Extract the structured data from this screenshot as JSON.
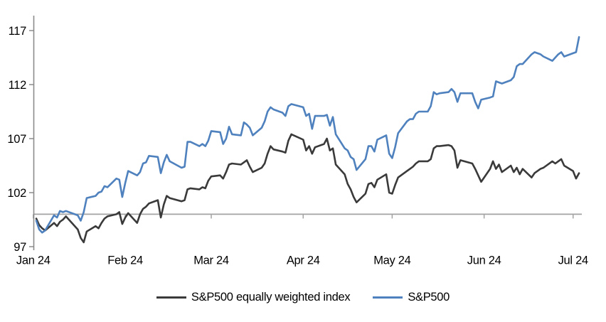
{
  "chart_data": {
    "type": "line",
    "title": "",
    "xlabel": "",
    "ylabel": "",
    "ylim": [
      97,
      117
    ],
    "y_ticks": [
      97,
      102,
      107,
      112,
      117
    ],
    "x_ticks": [
      {
        "label": "Jan 24",
        "date": "2024-01-01"
      },
      {
        "label": "Feb 24",
        "date": "2024-02-01"
      },
      {
        "label": "Mar 24",
        "date": "2024-03-01"
      },
      {
        "label": "Apr 24",
        "date": "2024-04-01"
      },
      {
        "label": "May 24",
        "date": "2024-05-01"
      },
      {
        "label": "Jun 24",
        "date": "2024-06-01"
      },
      {
        "label": "Jul 24",
        "date": "2024-07-01"
      }
    ],
    "baseline_value": 100,
    "grid": false,
    "legend_position": "bottom",
    "x": [
      "2024-01-02",
      "2024-01-03",
      "2024-01-04",
      "2024-01-05",
      "2024-01-08",
      "2024-01-09",
      "2024-01-10",
      "2024-01-11",
      "2024-01-12",
      "2024-01-16",
      "2024-01-17",
      "2024-01-18",
      "2024-01-19",
      "2024-01-22",
      "2024-01-23",
      "2024-01-24",
      "2024-01-25",
      "2024-01-26",
      "2024-01-29",
      "2024-01-30",
      "2024-01-31",
      "2024-02-01",
      "2024-02-02",
      "2024-02-05",
      "2024-02-06",
      "2024-02-07",
      "2024-02-08",
      "2024-02-09",
      "2024-02-12",
      "2024-02-13",
      "2024-02-14",
      "2024-02-15",
      "2024-02-16",
      "2024-02-20",
      "2024-02-21",
      "2024-02-22",
      "2024-02-23",
      "2024-02-26",
      "2024-02-27",
      "2024-02-28",
      "2024-02-29",
      "2024-03-01",
      "2024-03-04",
      "2024-03-05",
      "2024-03-06",
      "2024-03-07",
      "2024-03-08",
      "2024-03-11",
      "2024-03-12",
      "2024-03-13",
      "2024-03-14",
      "2024-03-15",
      "2024-03-18",
      "2024-03-19",
      "2024-03-20",
      "2024-03-21",
      "2024-03-22",
      "2024-03-25",
      "2024-03-26",
      "2024-03-27",
      "2024-03-28",
      "2024-04-01",
      "2024-04-02",
      "2024-04-03",
      "2024-04-04",
      "2024-04-05",
      "2024-04-08",
      "2024-04-09",
      "2024-04-10",
      "2024-04-11",
      "2024-04-12",
      "2024-04-15",
      "2024-04-16",
      "2024-04-17",
      "2024-04-18",
      "2024-04-19",
      "2024-04-22",
      "2024-04-23",
      "2024-04-24",
      "2024-04-25",
      "2024-04-26",
      "2024-04-29",
      "2024-04-30",
      "2024-05-01",
      "2024-05-02",
      "2024-05-03",
      "2024-05-06",
      "2024-05-07",
      "2024-05-08",
      "2024-05-09",
      "2024-05-10",
      "2024-05-13",
      "2024-05-14",
      "2024-05-15",
      "2024-05-16",
      "2024-05-17",
      "2024-05-20",
      "2024-05-21",
      "2024-05-22",
      "2024-05-23",
      "2024-05-24",
      "2024-05-28",
      "2024-05-29",
      "2024-05-30",
      "2024-05-31",
      "2024-06-03",
      "2024-06-04",
      "2024-06-05",
      "2024-06-06",
      "2024-06-07",
      "2024-06-10",
      "2024-06-11",
      "2024-06-12",
      "2024-06-13",
      "2024-06-14",
      "2024-06-17",
      "2024-06-18",
      "2024-06-20",
      "2024-06-21",
      "2024-06-24",
      "2024-06-25",
      "2024-06-26",
      "2024-06-27",
      "2024-06-28",
      "2024-07-01",
      "2024-07-02",
      "2024-07-03"
    ],
    "series": [
      {
        "name": "S&P500 equally weighted index",
        "color": "#3a3a3a",
        "values": [
          99.6,
          99.0,
          98.7,
          98.5,
          99.2,
          98.9,
          99.3,
          99.5,
          99.8,
          98.6,
          97.8,
          97.4,
          98.4,
          98.9,
          98.7,
          99.2,
          99.6,
          99.8,
          100.0,
          100.2,
          99.1,
          99.7,
          100.1,
          99.2,
          100.0,
          100.5,
          100.7,
          101.0,
          101.3,
          99.7,
          100.9,
          101.7,
          101.5,
          101.2,
          101.3,
          102.3,
          102.4,
          102.3,
          102.5,
          102.4,
          103.1,
          103.5,
          103.6,
          103.3,
          103.9,
          104.6,
          104.7,
          104.6,
          104.8,
          105.0,
          104.4,
          103.9,
          104.3,
          104.7,
          105.6,
          106.3,
          106.0,
          105.8,
          105.7,
          106.8,
          107.4,
          106.9,
          105.9,
          106.3,
          105.6,
          106.2,
          106.5,
          107.0,
          105.9,
          106.1,
          104.6,
          103.7,
          102.8,
          102.3,
          101.6,
          101.1,
          101.9,
          102.8,
          102.9,
          102.5,
          103.2,
          103.7,
          102.0,
          101.9,
          102.7,
          103.4,
          104.0,
          104.2,
          104.4,
          104.7,
          104.9,
          104.9,
          105.1,
          106.1,
          106.3,
          106.3,
          106.4,
          106.3,
          105.9,
          104.3,
          105.0,
          104.7,
          104.2,
          103.6,
          103.0,
          104.2,
          104.9,
          104.2,
          104.6,
          103.9,
          104.5,
          103.9,
          104.3,
          103.7,
          104.2,
          103.4,
          103.8,
          104.2,
          104.3,
          104.9,
          104.7,
          104.9,
          105.1,
          104.5,
          104.0,
          103.3,
          103.8
        ]
      },
      {
        "name": "S&P500",
        "color": "#4e81bd",
        "values": [
          99.4,
          98.6,
          98.3,
          98.5,
          99.9,
          99.7,
          100.3,
          100.2,
          100.3,
          99.9,
          99.4,
          100.2,
          101.5,
          101.7,
          102.0,
          102.1,
          102.6,
          102.5,
          103.3,
          103.2,
          101.6,
          102.9,
          104.0,
          103.6,
          103.9,
          104.7,
          104.8,
          105.4,
          105.3,
          103.8,
          104.8,
          105.5,
          104.9,
          104.3,
          104.4,
          106.7,
          106.7,
          106.3,
          106.5,
          106.3,
          106.8,
          107.7,
          107.6,
          106.5,
          107.0,
          108.1,
          107.4,
          107.3,
          108.5,
          108.3,
          108.0,
          107.3,
          108.0,
          108.6,
          109.5,
          109.9,
          109.7,
          109.4,
          109.1,
          110.0,
          110.2,
          109.9,
          109.1,
          109.3,
          107.9,
          109.1,
          109.1,
          109.2,
          108.2,
          109.0,
          107.4,
          106.1,
          105.9,
          105.3,
          105.1,
          104.1,
          105.1,
          106.3,
          106.3,
          105.8,
          106.9,
          107.3,
          105.6,
          105.2,
          106.2,
          107.5,
          108.6,
          108.8,
          108.8,
          109.3,
          109.5,
          109.5,
          110.0,
          111.3,
          111.1,
          111.2,
          111.3,
          111.6,
          111.3,
          110.4,
          111.2,
          111.2,
          110.4,
          109.8,
          110.6,
          110.8,
          110.9,
          112.3,
          112.2,
          112.1,
          112.4,
          112.7,
          113.7,
          113.9,
          113.9,
          114.8,
          115.0,
          114.8,
          114.6,
          114.2,
          114.5,
          114.8,
          115.0,
          114.6,
          114.9,
          115.0,
          116.4
        ]
      }
    ]
  },
  "colors": {
    "equal_weight_line": "#3a3a3a",
    "sp500_line": "#4e81bd",
    "axis": "#8c8c8c",
    "baseline": "#a3a3a3",
    "text": "#000000",
    "background": "#ffffff"
  },
  "legend": {
    "items": [
      "S&P500 equally weighted index",
      "S&P500"
    ]
  }
}
